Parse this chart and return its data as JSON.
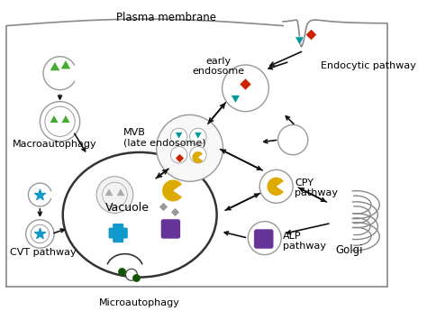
{
  "bg_color": "#ffffff",
  "labels": {
    "plasma_membrane": "Plasma membrane",
    "early_endosome": "early\nendosome",
    "endocytic_pathway": "Endocytic pathway",
    "mvb": "MVB\n(late endosome)",
    "macroautophagy": "Macroautophagy",
    "vacuole": "Vacuole",
    "cvt_pathway": "CVT pathway",
    "microautophagy": "Microautophagy",
    "cpy_pathway": "CPY\npathway",
    "alp_pathway": "ALP\npathway",
    "golgi": "Golgi"
  },
  "colors": {
    "outline": "#999999",
    "outline_dark": "#555555",
    "arrow": "#111111",
    "green_triangle": "#44aa33",
    "teal_triangle": "#009999",
    "red_diamond": "#cc2200",
    "yellow_pac": "#ddaa00",
    "gray_diamond": "#999999",
    "purple_shield": "#663399",
    "blue_cross": "#1199cc",
    "dark_green_dot": "#115500",
    "vacuole_outline": "#333333",
    "cell_outline": "#888888"
  }
}
